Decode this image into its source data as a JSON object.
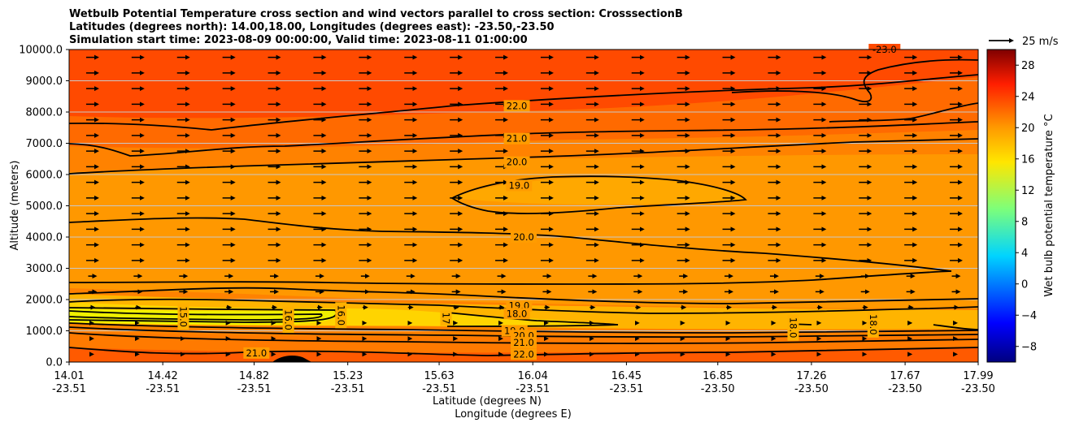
{
  "chart_data": {
    "type": "contour-cross-section",
    "title_lines": [
      "Wetbulb Potential Temperature cross section and wind vectors parallel to cross section: CrosssectionB",
      "Latitudes (degrees north): 14.00,18.00, Longitudes (degrees east): -23.50,-23.50",
      "Simulation start time: 2023-08-09 00:00:00, Valid time: 2023-08-11 01:00:00"
    ],
    "ylabel": "Altitude (meters)",
    "xlabel": "Latitude (degrees N)",
    "xlabel2": "Longitude (degrees E)",
    "ylim": [
      0,
      10000
    ],
    "xlim": [
      14.01,
      17.99
    ],
    "y_ticks": [
      "0.0",
      "1000.0",
      "2000.0",
      "3000.0",
      "4000.0",
      "5000.0",
      "6000.0",
      "7000.0",
      "8000.0",
      "9000.0",
      "10000.0"
    ],
    "y_tick_values": [
      0,
      1000,
      2000,
      3000,
      4000,
      5000,
      6000,
      7000,
      8000,
      9000,
      10000
    ],
    "x_ticks": [
      {
        "lat": "14.01",
        "lon": "-23.51"
      },
      {
        "lat": "14.42",
        "lon": "-23.51"
      },
      {
        "lat": "14.82",
        "lon": "-23.51"
      },
      {
        "lat": "15.23",
        "lon": "-23.51"
      },
      {
        "lat": "15.63",
        "lon": "-23.51"
      },
      {
        "lat": "16.04",
        "lon": "-23.51"
      },
      {
        "lat": "16.45",
        "lon": "-23.51"
      },
      {
        "lat": "16.85",
        "lon": "-23.50"
      },
      {
        "lat": "17.26",
        "lon": "-23.50"
      },
      {
        "lat": "17.67",
        "lon": "-23.50"
      },
      {
        "lat": "17.99",
        "lon": "-23.50"
      }
    ],
    "x_tick_values": [
      14.01,
      14.42,
      14.82,
      15.23,
      15.63,
      16.04,
      16.45,
      16.85,
      17.26,
      17.67,
      17.99
    ],
    "colorbar": {
      "label": "Wet bulb potential temperature °C",
      "ticks": [
        "−8",
        "−4",
        "0",
        "4",
        "8",
        "12",
        "16",
        "20",
        "24",
        "28"
      ],
      "tick_values": [
        -8,
        -4,
        0,
        4,
        8,
        12,
        16,
        20,
        24,
        28
      ],
      "range": [
        -10,
        30
      ]
    },
    "quiver_key": {
      "label": "25 m/s"
    },
    "contour_labels": [
      {
        "text": "22.0",
        "x": 15.97,
        "y": 8200
      },
      {
        "text": "21.0",
        "x": 15.97,
        "y": 7150
      },
      {
        "text": "20.0",
        "x": 15.97,
        "y": 6400
      },
      {
        "text": "19.0",
        "x": 15.98,
        "y": 5650
      },
      {
        "text": "20.0",
        "x": 16.0,
        "y": 4000
      },
      {
        "text": "19.0",
        "x": 15.98,
        "y": 1800
      },
      {
        "text": "18.0",
        "x": 15.97,
        "y": 1550
      },
      {
        "text": "19.0",
        "x": 15.96,
        "y": 1000
      },
      {
        "text": "20.0",
        "x": 16.0,
        "y": 850
      },
      {
        "text": "21.0",
        "x": 16.0,
        "y": 620
      },
      {
        "text": "22.0",
        "x": 16.0,
        "y": 250
      },
      {
        "text": "21.0",
        "x": 14.83,
        "y": 290
      },
      {
        "text": "15.0",
        "x": 14.51,
        "y": 1450
      },
      {
        "text": "16.0",
        "x": 14.97,
        "y": 1350
      },
      {
        "text": "16.0",
        "x": 15.2,
        "y": 1500
      },
      {
        "text": "17",
        "x": 15.66,
        "y": 1400
      },
      {
        "text": "18.0",
        "x": 17.18,
        "y": 1100
      },
      {
        "text": "18.0",
        "x": 17.53,
        "y": 1200
      },
      {
        "text": "-23.0",
        "x": 17.58,
        "y": 10000
      }
    ]
  }
}
